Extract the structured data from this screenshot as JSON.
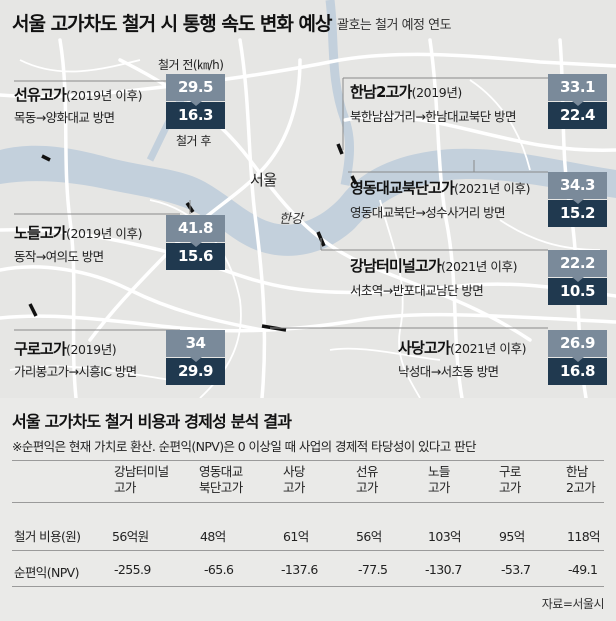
{
  "map": {
    "title": "서울 고가차도 철거 시 통행 속도 변화 예상",
    "subtitle": "괄호는 철거 예정 연도",
    "before_label": "철거 전(㎞/h)",
    "after_label": "철거 후",
    "city_label": "서울",
    "river_label": "한강",
    "colors": {
      "before_box": "#7a8a9a",
      "after_box": "#20394f",
      "river": "#c3d0dc",
      "roads": "#ffffff",
      "land": "#e6e6e4"
    },
    "sites": [
      {
        "name": "선유고가",
        "year": "(2019년 이후)",
        "route": "목동→양화대교 방면",
        "before": "29.5",
        "after": "16.3"
      },
      {
        "name": "노들고가",
        "year": "(2019년 이후)",
        "route": "동작→여의도 방면",
        "before": "41.8",
        "after": "15.6"
      },
      {
        "name": "구로고가",
        "year": "(2019년)",
        "route": "가리봉고가→시흥IC 방면",
        "before": "34",
        "after": "29.9"
      },
      {
        "name": "한남2고가",
        "year": "(2019년)",
        "route": "북한남삼거리→한남대교북단 방면",
        "before": "33.1",
        "after": "22.4"
      },
      {
        "name": "영동대교북단고가",
        "year": "(2021년 이후)",
        "route": "영동대교북단→성수사거리 방면",
        "before": "34.3",
        "after": "15.2"
      },
      {
        "name": "강남터미널고가",
        "year": "(2021년 이후)",
        "route": "서초역→반포대교남단 방면",
        "before": "22.2",
        "after": "10.5"
      },
      {
        "name": "사당고가",
        "year": "(2021년 이후)",
        "route": "낙성대→서초동 방면",
        "before": "26.9",
        "after": "16.8"
      }
    ]
  },
  "table": {
    "title": "서울 고가차도 철거 비용과 경제성 분석 결과",
    "note": "※순편익은 현재 가치로 환산. 순편익(NPV)은 0 이상일 때 사업의 경제적 타당성이 있다고 판단",
    "columns": [
      [
        "강남터미널",
        "고가"
      ],
      [
        "영동대교",
        "북단고가"
      ],
      [
        "사당",
        "고가"
      ],
      [
        "선유",
        "고가"
      ],
      [
        "노들",
        "고가"
      ],
      [
        "구로",
        "고가"
      ],
      [
        "한남",
        "2고가"
      ]
    ],
    "rows": [
      {
        "label": "철거 비용(원)",
        "values": [
          "56억원",
          "48억",
          "61억",
          "56억",
          "103억",
          "95억",
          "118억"
        ]
      },
      {
        "label": "순편익(NPV)",
        "values": [
          "-255.9",
          "-65.6",
          "-137.6",
          "-77.5",
          "-130.7",
          "-53.7",
          "-49.1"
        ]
      }
    ],
    "source": "자료=서울시"
  }
}
